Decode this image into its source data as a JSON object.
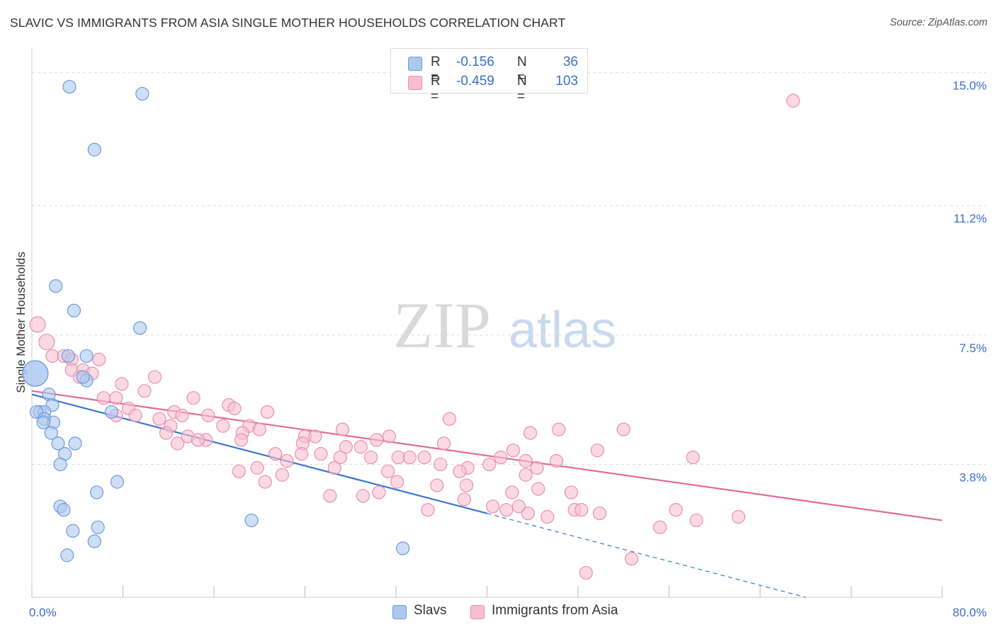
{
  "title": "SLAVIC VS IMMIGRANTS FROM ASIA SINGLE MOTHER HOUSEHOLDS CORRELATION CHART",
  "source": "Source: ZipAtlas.com",
  "watermark": {
    "zip": "ZIP",
    "atlas": "atlas"
  },
  "colors": {
    "slavs_fill": "#adc8ef",
    "slavs_stroke": "#6f9ad9",
    "slavs_line": "#3a76cf",
    "asia_fill": "#f6bfd1",
    "asia_stroke": "#ea8fae",
    "asia_line": "#e4699a",
    "tick_text": "#3a6fc6",
    "grid": "#dddddd"
  },
  "legend": {
    "slavs": {
      "r_label": "R =",
      "r_value": "-0.156",
      "n_label": "N =",
      "n_value": "36"
    },
    "asia": {
      "r_label": "R =",
      "r_value": "-0.459",
      "n_label": "N =",
      "n_value": "103"
    }
  },
  "chart_data": {
    "type": "scatter",
    "title": "SLAVIC VS IMMIGRANTS FROM ASIA SINGLE MOTHER HOUSEHOLDS CORRELATION CHART",
    "xlabel": "",
    "ylabel": "Single Mother Households",
    "xlim": [
      0,
      80
    ],
    "ylim": [
      0,
      15.5
    ],
    "x_tick_labels": [
      {
        "value": 0,
        "label": "0.0%"
      },
      {
        "value": 80,
        "label": "80.0%"
      }
    ],
    "y_ticks": [
      {
        "value": 3.8,
        "label": "3.8%"
      },
      {
        "value": 7.5,
        "label": "7.5%"
      },
      {
        "value": 11.2,
        "label": "11.2%"
      },
      {
        "value": 15.0,
        "label": "15.0%"
      }
    ],
    "grid": true,
    "legend_position": "bottom-center",
    "series": [
      {
        "name": "Slavs",
        "trend": {
          "x0": 0,
          "y0": 5.8,
          "x1": 40,
          "y1": 2.4,
          "dashed_to_x": 68,
          "dashed_to_y": 0.0
        },
        "points": [
          [
            3.3,
            14.6
          ],
          [
            9.7,
            14.4
          ],
          [
            5.5,
            12.8
          ],
          [
            2.1,
            8.9
          ],
          [
            3.7,
            8.2
          ],
          [
            9.5,
            7.7
          ],
          [
            0.3,
            6.4
          ],
          [
            4.8,
            6.9
          ],
          [
            3.2,
            6.9
          ],
          [
            4.8,
            6.2
          ],
          [
            1.5,
            5.8
          ],
          [
            1.8,
            5.5
          ],
          [
            0.7,
            5.3
          ],
          [
            1.1,
            5.3
          ],
          [
            0.4,
            5.3
          ],
          [
            7.0,
            5.3
          ],
          [
            1.1,
            5.1
          ],
          [
            1.9,
            5.0
          ],
          [
            1.0,
            5.0
          ],
          [
            1.7,
            4.7
          ],
          [
            2.3,
            4.4
          ],
          [
            3.8,
            4.4
          ],
          [
            2.9,
            4.1
          ],
          [
            2.5,
            3.8
          ],
          [
            7.5,
            3.3
          ],
          [
            5.7,
            3.0
          ],
          [
            2.5,
            2.6
          ],
          [
            2.8,
            2.5
          ],
          [
            19.3,
            2.2
          ],
          [
            5.8,
            2.0
          ],
          [
            3.6,
            1.9
          ],
          [
            5.5,
            1.6
          ],
          [
            32.6,
            1.4
          ],
          [
            3.1,
            1.2
          ],
          [
            0.3,
            6.4
          ],
          [
            4.5,
            6.3
          ]
        ],
        "point_sizes": [
          9,
          9,
          9,
          9,
          9,
          9,
          18,
          9,
          9,
          9,
          9,
          9,
          9,
          9,
          9,
          9,
          9,
          9,
          9,
          9,
          9,
          9,
          9,
          9,
          9,
          9,
          9,
          9,
          9,
          9,
          9,
          9,
          9,
          9,
          18,
          9
        ]
      },
      {
        "name": "Immigrants from Asia",
        "trend": {
          "x0": 0,
          "y0": 5.9,
          "x1": 80,
          "y1": 2.2
        },
        "points": [
          [
            66.9,
            14.2
          ],
          [
            0.5,
            7.8
          ],
          [
            1.3,
            7.3
          ],
          [
            1.8,
            6.9
          ],
          [
            2.8,
            6.9
          ],
          [
            3.5,
            6.8
          ],
          [
            5.9,
            6.8
          ],
          [
            3.5,
            6.5
          ],
          [
            4.5,
            6.5
          ],
          [
            5.3,
            6.4
          ],
          [
            4.2,
            6.3
          ],
          [
            10.8,
            6.3
          ],
          [
            7.9,
            6.1
          ],
          [
            9.9,
            5.9
          ],
          [
            6.3,
            5.7
          ],
          [
            7.4,
            5.7
          ],
          [
            14.2,
            5.7
          ],
          [
            17.3,
            5.5
          ],
          [
            8.5,
            5.4
          ],
          [
            17.8,
            5.4
          ],
          [
            20.7,
            5.3
          ],
          [
            12.5,
            5.3
          ],
          [
            13.2,
            5.2
          ],
          [
            7.4,
            5.2
          ],
          [
            9.1,
            5.2
          ],
          [
            15.5,
            5.2
          ],
          [
            11.2,
            5.1
          ],
          [
            36.7,
            5.1
          ],
          [
            19.1,
            4.9
          ],
          [
            12.2,
            4.9
          ],
          [
            16.8,
            4.9
          ],
          [
            52.0,
            4.8
          ],
          [
            20.0,
            4.8
          ],
          [
            27.3,
            4.8
          ],
          [
            46.3,
            4.8
          ],
          [
            11.8,
            4.7
          ],
          [
            18.5,
            4.7
          ],
          [
            13.7,
            4.6
          ],
          [
            24.0,
            4.6
          ],
          [
            24.9,
            4.6
          ],
          [
            31.4,
            4.6
          ],
          [
            15.3,
            4.5
          ],
          [
            14.6,
            4.5
          ],
          [
            30.3,
            4.5
          ],
          [
            43.8,
            4.7
          ],
          [
            18.4,
            4.5
          ],
          [
            12.8,
            4.4
          ],
          [
            23.8,
            4.4
          ],
          [
            28.9,
            4.3
          ],
          [
            36.2,
            4.4
          ],
          [
            27.6,
            4.3
          ],
          [
            49.7,
            4.2
          ],
          [
            42.3,
            4.2
          ],
          [
            25.4,
            4.1
          ],
          [
            23.7,
            4.1
          ],
          [
            21.4,
            4.1
          ],
          [
            27.1,
            4.0
          ],
          [
            32.2,
            4.0
          ],
          [
            33.2,
            4.0
          ],
          [
            34.5,
            4.0
          ],
          [
            29.8,
            4.0
          ],
          [
            41.2,
            4.0
          ],
          [
            46.1,
            3.9
          ],
          [
            43.4,
            3.9
          ],
          [
            35.9,
            3.8
          ],
          [
            40.2,
            3.8
          ],
          [
            38.3,
            3.7
          ],
          [
            44.4,
            3.7
          ],
          [
            26.6,
            3.7
          ],
          [
            31.3,
            3.6
          ],
          [
            37.6,
            3.6
          ],
          [
            22.0,
            3.5
          ],
          [
            20.5,
            3.3
          ],
          [
            32.1,
            3.3
          ],
          [
            35.6,
            3.2
          ],
          [
            44.5,
            3.1
          ],
          [
            38.2,
            3.2
          ],
          [
            47.4,
            3.0
          ],
          [
            42.2,
            3.0
          ],
          [
            38.0,
            2.8
          ],
          [
            40.5,
            2.6
          ],
          [
            42.8,
            2.6
          ],
          [
            56.6,
            2.5
          ],
          [
            43.6,
            2.4
          ],
          [
            47.7,
            2.5
          ],
          [
            48.3,
            2.5
          ],
          [
            45.3,
            2.3
          ],
          [
            49.9,
            2.4
          ],
          [
            58.4,
            2.2
          ],
          [
            43.4,
            3.5
          ],
          [
            52.7,
            1.1
          ],
          [
            48.7,
            0.7
          ],
          [
            58.1,
            4.0
          ],
          [
            18.2,
            3.6
          ],
          [
            19.8,
            3.7
          ],
          [
            26.2,
            2.9
          ],
          [
            29.1,
            2.9
          ],
          [
            30.5,
            3.0
          ],
          [
            34.8,
            2.5
          ],
          [
            55.2,
            2.0
          ],
          [
            62.1,
            2.3
          ],
          [
            41.7,
            2.5
          ],
          [
            22.4,
            3.9
          ]
        ],
        "point_sizes": [
          9,
          11,
          11,
          9,
          9,
          9,
          9,
          9,
          9,
          9,
          9,
          9,
          9,
          9,
          9,
          9,
          9,
          9,
          9,
          9,
          9,
          9,
          9,
          9,
          9,
          9,
          9,
          9,
          9,
          9,
          9,
          9,
          9,
          9,
          9,
          9,
          9,
          9,
          9,
          9,
          9,
          9,
          9,
          9,
          9,
          9,
          9,
          9,
          9,
          9,
          9,
          9,
          9,
          9,
          9,
          9,
          9,
          9,
          9,
          9,
          9,
          9,
          9,
          9,
          9,
          9,
          9,
          9,
          9,
          9,
          9,
          9,
          9,
          9,
          9,
          9,
          9,
          9,
          9,
          9,
          9,
          9,
          9,
          9,
          9,
          9,
          9,
          9,
          9,
          9,
          9,
          9,
          9,
          9,
          9,
          9,
          9,
          9,
          9,
          9,
          9,
          9,
          9
        ]
      }
    ]
  }
}
